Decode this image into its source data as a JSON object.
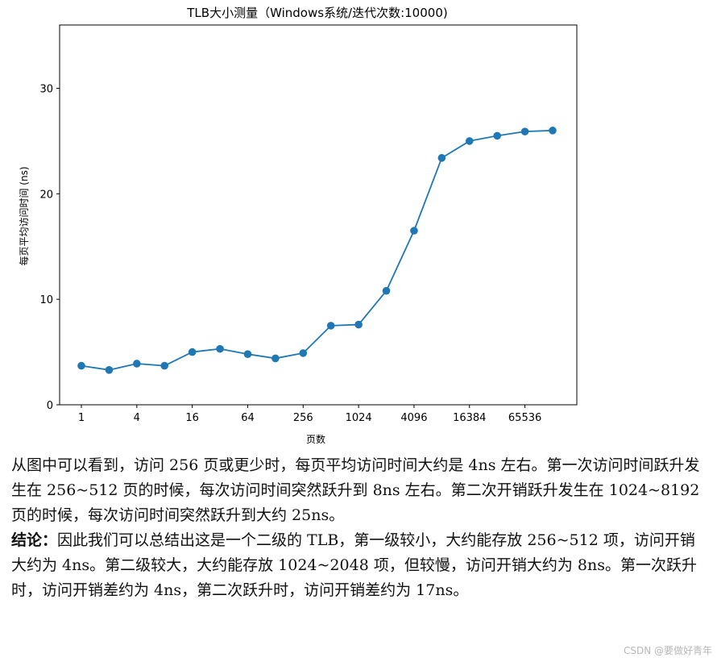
{
  "chart_data": {
    "type": "line",
    "title": "TLB大小测量（Windows系统/迭代次数:10000)",
    "xlabel": "页数",
    "ylabel": "每页平均访问时间 (ns)",
    "x_scale": "log2",
    "x": [
      1,
      2,
      4,
      8,
      16,
      32,
      64,
      128,
      256,
      512,
      1024,
      2048,
      4096,
      8192,
      16384,
      32768,
      65536,
      131072
    ],
    "x_tick_labels": [
      "1",
      "4",
      "16",
      "64",
      "256",
      "1024",
      "4096",
      "16384",
      "65536"
    ],
    "y_ticks": [
      0,
      10,
      20,
      30
    ],
    "ylim": [
      0,
      36
    ],
    "grid": false,
    "series": [
      {
        "color": "#1f77b4",
        "marker": "circle",
        "values": [
          3.7,
          3.3,
          3.9,
          3.7,
          5.0,
          5.3,
          4.8,
          4.4,
          4.9,
          7.5,
          7.6,
          10.8,
          16.5,
          23.4,
          25.0,
          25.5,
          25.9,
          26.0
        ]
      }
    ]
  },
  "text": {
    "para1": "从图中可以看到，访问 256 页或更少时，每页平均访问时间大约是 4ns 左右。第一次访问时间跃升发生在 256~512 页的时候，每次访问时间突然跃升到 8ns 左右。第二次开销跃升发生在 1024~8192 页的时候，每次访问时间突然跃升到大约 25ns。",
    "conclusion_label": "结论：",
    "conclusion_body": "因此我们可以总结出这是一个二级的 TLB，第一级较小，大约能存放 256~512 项，访问开销大约为 4ns。第二级较大，大约能存放 1024~2048 项，但较慢，访问开销大约为 8ns。第一次跃升时，访问开销差约为 4ns，第二次跃升时，访问开销差约为 17ns。"
  },
  "watermark": "CSDN @要做好青年"
}
